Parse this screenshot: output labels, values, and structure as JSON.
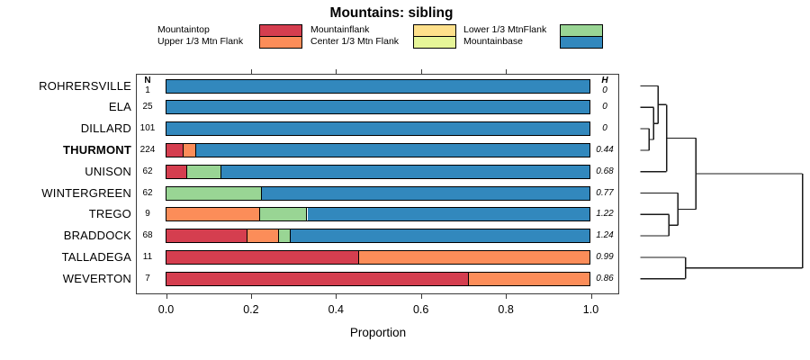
{
  "columns": {
    "n_header": "N",
    "h_header": "H"
  },
  "chart_data": {
    "type": "bar",
    "orientation": "horizontal",
    "stacked": true,
    "title": "Mountains: sibling",
    "xlabel": "Proportion",
    "xlim": [
      0,
      1
    ],
    "x_ticks": [
      "0.0",
      "0.2",
      "0.4",
      "0.6",
      "0.8",
      "1.0"
    ],
    "grid": false,
    "legend_position": "top",
    "categories": [
      "ROHRERSVILLE",
      "ELA",
      "DILLARD",
      "THURMONT",
      "UNISON",
      "WINTERGREEN",
      "TREGO",
      "BRADDOCK",
      "TALLADEGA",
      "WEVERTON"
    ],
    "bold_category": "THURMONT",
    "N": [
      1,
      25,
      101,
      224,
      62,
      62,
      9,
      68,
      11,
      7
    ],
    "H": [
      "0",
      "0",
      "0",
      "0.44",
      "0.68",
      "0.77",
      "1.22",
      "1.24",
      "0.99",
      "0.86"
    ],
    "series": [
      {
        "name": "Mountaintop",
        "color": "#D53E4F",
        "values": [
          0,
          0,
          0,
          0.04,
          0.048,
          0,
          0,
          0.191,
          0.455,
          0.714
        ]
      },
      {
        "name": "Upper 1/3 Mtn Flank",
        "color": "#FC8D59",
        "values": [
          0,
          0,
          0,
          0.031,
          0,
          0,
          0.222,
          0.074,
          0.545,
          0.286
        ]
      },
      {
        "name": "Mountainflank",
        "color": "#FEE08B",
        "values": [
          0,
          0,
          0,
          0,
          0,
          0,
          0,
          0,
          0,
          0
        ]
      },
      {
        "name": "Center 1/3 Mtn Flank",
        "color": "#E6F598",
        "values": [
          0,
          0,
          0,
          0,
          0,
          0,
          0,
          0,
          0,
          0
        ]
      },
      {
        "name": "Lower 1/3 MtnFlank",
        "color": "#99D594",
        "values": [
          0,
          0,
          0,
          0,
          0.081,
          0.226,
          0.111,
          0.029,
          0,
          0
        ]
      },
      {
        "name": "Mountainbase",
        "color": "#3288BD",
        "values": [
          1,
          1,
          1,
          0.929,
          0.871,
          0.774,
          0.667,
          0.706,
          0,
          0
        ]
      }
    ],
    "dendrogram": {
      "note": "hierarchical clustering tree at right; x = merge height offset px (0 leaf edge, 180 root), y = row index",
      "segments": [
        [
          0,
          0,
          19.6,
          0
        ],
        [
          0,
          1,
          14.6,
          1
        ],
        [
          0,
          2,
          9.6,
          2
        ],
        [
          0,
          3,
          9.6,
          3
        ],
        [
          0,
          4,
          29,
          4
        ],
        [
          0,
          5,
          41.6,
          5
        ],
        [
          0,
          6,
          31.6,
          6
        ],
        [
          0,
          7,
          31.6,
          7
        ],
        [
          0,
          8,
          50,
          8
        ],
        [
          0,
          9,
          50,
          9
        ],
        [
          9.6,
          2,
          9.6,
          3
        ],
        [
          9.6,
          2.5,
          14.6,
          2.5
        ],
        [
          14.6,
          1,
          14.6,
          2.5
        ],
        [
          14.6,
          1.75,
          19.6,
          1.75
        ],
        [
          19.6,
          0,
          19.6,
          1.75
        ],
        [
          19.6,
          0.875,
          29,
          0.875
        ],
        [
          29,
          0.875,
          29,
          4
        ],
        [
          29,
          2.4375,
          61.6,
          2.4375
        ],
        [
          31.6,
          6,
          31.6,
          7
        ],
        [
          31.6,
          6.5,
          41.6,
          6.5
        ],
        [
          41.6,
          5,
          41.6,
          6.5
        ],
        [
          41.6,
          5.75,
          61.6,
          5.75
        ],
        [
          61.6,
          2.4375,
          61.6,
          5.75
        ],
        [
          61.6,
          4.09375,
          180,
          4.09375
        ],
        [
          50,
          8,
          50,
          9
        ],
        [
          50,
          8.5,
          180,
          8.5
        ],
        [
          180,
          4.09375,
          180,
          8.5
        ]
      ]
    }
  }
}
